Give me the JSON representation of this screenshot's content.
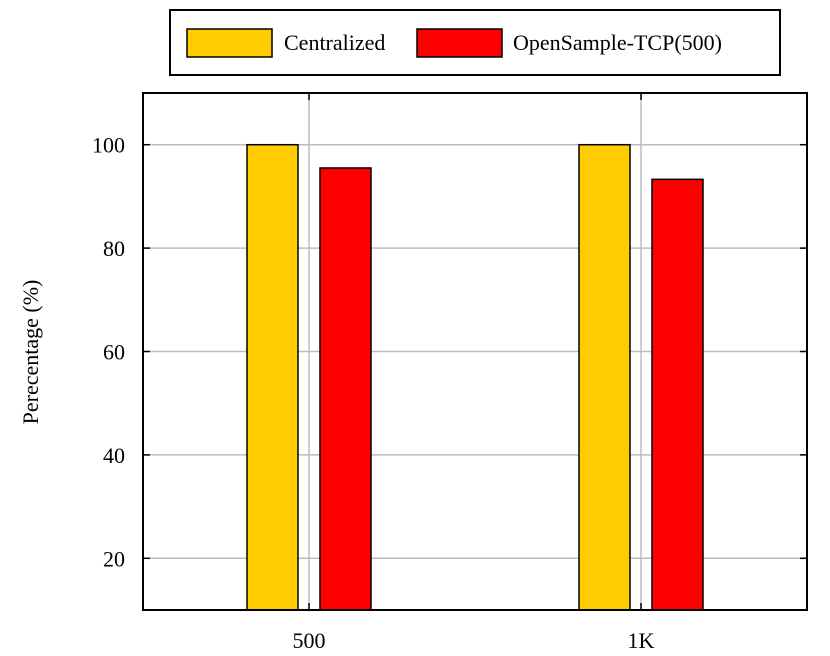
{
  "chart_data": {
    "type": "bar",
    "categories": [
      "500",
      "1K"
    ],
    "series": [
      {
        "name": "Centralized",
        "values": [
          100,
          100
        ],
        "color": "#FFCC00"
      },
      {
        "name": "OpenSample-TCP(500)",
        "values": [
          95.5,
          93.3
        ],
        "color": "#FF0000"
      }
    ],
    "ylabel": "Perecentage (%)",
    "xlabel": "",
    "ylim": [
      10,
      110
    ],
    "yticks": [
      20,
      40,
      60,
      80,
      100
    ],
    "grid": true,
    "legend_position": "top-center"
  }
}
